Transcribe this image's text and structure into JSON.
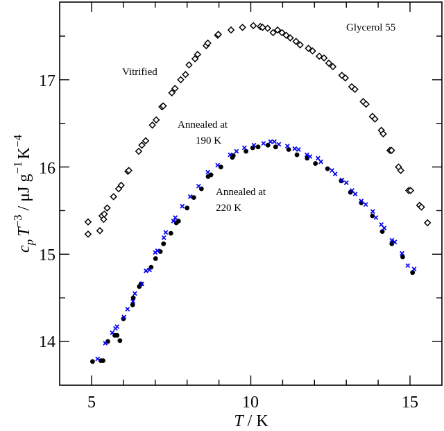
{
  "chart_data": {
    "type": "scatter",
    "title": "",
    "xlabel": {
      "var": "T",
      "unit": " / K"
    },
    "ylabel": {
      "c": "c",
      "sub": "p",
      "T": "T",
      "exp1": "−3",
      "unit": " / μJ g",
      "exp2": "−1",
      "K": "K",
      "exp3": "−4"
    },
    "xlim": [
      4.0,
      16.0
    ],
    "ylim": [
      13.5,
      17.9
    ],
    "x_ticks": [
      5,
      10,
      15
    ],
    "x_tick_labels": [
      "5",
      "10",
      "15"
    ],
    "x_minor_step": 1,
    "y_ticks": [
      14,
      15,
      16,
      17
    ],
    "y_tick_labels": [
      "14",
      "15",
      "16",
      "17"
    ],
    "y_minor_step": 0.5,
    "grid": false,
    "annotations": {
      "sample": "Glycerol 55",
      "vitrified": "Vitrified",
      "annealed190_line1": "Annealed at",
      "annealed190_line2": "190 K",
      "annealed220_line1": "Annealed at",
      "annealed220_line2": "220 K"
    },
    "series": [
      {
        "name": "Vitrified",
        "marker": "open-diamond",
        "color": "#000000",
        "points": [
          [
            4.89,
            15.37
          ],
          [
            4.89,
            15.23
          ],
          [
            5.26,
            15.27
          ],
          [
            5.33,
            15.44
          ],
          [
            5.38,
            15.4
          ],
          [
            5.4,
            15.46
          ],
          [
            5.49,
            15.53
          ],
          [
            5.69,
            15.66
          ],
          [
            5.85,
            15.75
          ],
          [
            5.93,
            15.79
          ],
          [
            6.14,
            15.95
          ],
          [
            6.17,
            15.96
          ],
          [
            6.48,
            16.18
          ],
          [
            6.58,
            16.25
          ],
          [
            6.7,
            16.3
          ],
          [
            6.91,
            16.48
          ],
          [
            7.03,
            16.54
          ],
          [
            7.21,
            16.69
          ],
          [
            7.25,
            16.7
          ],
          [
            7.52,
            16.85
          ],
          [
            7.62,
            16.9
          ],
          [
            7.8,
            17.0
          ],
          [
            7.95,
            17.06
          ],
          [
            8.06,
            17.17
          ],
          [
            8.25,
            17.24
          ],
          [
            8.33,
            17.29
          ],
          [
            8.6,
            17.39
          ],
          [
            8.65,
            17.42
          ],
          [
            8.96,
            17.51
          ],
          [
            8.98,
            17.52
          ],
          [
            9.38,
            17.57
          ],
          [
            9.74,
            17.6
          ],
          [
            10.08,
            17.62
          ],
          [
            10.3,
            17.61
          ],
          [
            10.37,
            17.6
          ],
          [
            10.53,
            17.59
          ],
          [
            10.7,
            17.54
          ],
          [
            10.84,
            17.57
          ],
          [
            10.98,
            17.54
          ],
          [
            11.11,
            17.51
          ],
          [
            11.24,
            17.48
          ],
          [
            11.42,
            17.44
          ],
          [
            11.55,
            17.4
          ],
          [
            11.81,
            17.36
          ],
          [
            11.94,
            17.33
          ],
          [
            12.15,
            17.27
          ],
          [
            12.3,
            17.25
          ],
          [
            12.45,
            17.19
          ],
          [
            12.58,
            17.15
          ],
          [
            12.86,
            17.05
          ],
          [
            12.97,
            17.02
          ],
          [
            13.17,
            16.92
          ],
          [
            13.27,
            16.89
          ],
          [
            13.53,
            16.75
          ],
          [
            13.62,
            16.72
          ],
          [
            13.82,
            16.58
          ],
          [
            13.9,
            16.55
          ],
          [
            14.1,
            16.42
          ],
          [
            14.16,
            16.38
          ],
          [
            14.37,
            16.19
          ],
          [
            14.42,
            16.19
          ],
          [
            14.64,
            16.0
          ],
          [
            14.71,
            15.96
          ],
          [
            14.96,
            15.73
          ],
          [
            15.02,
            15.73
          ],
          [
            15.3,
            15.56
          ],
          [
            15.36,
            15.54
          ],
          [
            15.55,
            15.36
          ]
        ]
      },
      {
        "name": "Annealed at 190 K",
        "marker": "cross",
        "color": "#0000ee",
        "points": [
          [
            5.19,
            13.8
          ],
          [
            5.43,
            13.98
          ],
          [
            5.65,
            14.1
          ],
          [
            5.75,
            14.15
          ],
          [
            5.8,
            14.17
          ],
          [
            6.02,
            14.28
          ],
          [
            6.13,
            14.37
          ],
          [
            6.3,
            14.46
          ],
          [
            6.36,
            14.55
          ],
          [
            6.58,
            14.66
          ],
          [
            6.71,
            14.81
          ],
          [
            6.82,
            14.82
          ],
          [
            7.0,
            15.02
          ],
          [
            7.07,
            15.04
          ],
          [
            7.27,
            15.19
          ],
          [
            7.33,
            15.25
          ],
          [
            7.57,
            15.38
          ],
          [
            7.63,
            15.42
          ],
          [
            7.85,
            15.55
          ],
          [
            8.1,
            15.66
          ],
          [
            8.36,
            15.78
          ],
          [
            8.65,
            15.94
          ],
          [
            8.96,
            16.02
          ],
          [
            9.35,
            16.14
          ],
          [
            9.55,
            16.18
          ],
          [
            9.8,
            16.22
          ],
          [
            10.1,
            16.25
          ],
          [
            10.4,
            16.27
          ],
          [
            10.62,
            16.29
          ],
          [
            10.74,
            16.29
          ],
          [
            10.88,
            16.26
          ],
          [
            11.15,
            16.24
          ],
          [
            11.38,
            16.21
          ],
          [
            11.5,
            16.2
          ],
          [
            11.76,
            16.14
          ],
          [
            11.86,
            16.12
          ],
          [
            12.11,
            16.1
          ],
          [
            12.2,
            16.06
          ],
          [
            12.55,
            15.96
          ],
          [
            12.65,
            15.92
          ],
          [
            12.86,
            15.85
          ],
          [
            13.0,
            15.82
          ],
          [
            13.18,
            15.73
          ],
          [
            13.28,
            15.69
          ],
          [
            13.47,
            15.61
          ],
          [
            13.61,
            15.57
          ],
          [
            13.83,
            15.49
          ],
          [
            13.93,
            15.42
          ],
          [
            14.1,
            15.34
          ],
          [
            14.19,
            15.3
          ],
          [
            14.43,
            15.16
          ],
          [
            14.52,
            15.14
          ],
          [
            14.75,
            15.01
          ],
          [
            14.93,
            14.87
          ],
          [
            15.13,
            14.83
          ]
        ]
      },
      {
        "name": "Annealed at 220 K",
        "marker": "filled-circle",
        "color": "#000000",
        "points": [
          [
            5.03,
            13.77
          ],
          [
            5.29,
            13.78
          ],
          [
            5.36,
            13.78
          ],
          [
            5.51,
            14.0
          ],
          [
            5.73,
            14.07
          ],
          [
            5.8,
            14.07
          ],
          [
            5.89,
            14.01
          ],
          [
            6.0,
            14.26
          ],
          [
            6.29,
            14.42
          ],
          [
            6.31,
            14.5
          ],
          [
            6.5,
            14.63
          ],
          [
            6.55,
            14.66
          ],
          [
            6.87,
            14.85
          ],
          [
            7.01,
            14.95
          ],
          [
            7.16,
            15.03
          ],
          [
            7.26,
            15.12
          ],
          [
            7.49,
            15.24
          ],
          [
            7.66,
            15.36
          ],
          [
            7.73,
            15.38
          ],
          [
            8.0,
            15.53
          ],
          [
            8.21,
            15.65
          ],
          [
            8.45,
            15.75
          ],
          [
            8.66,
            15.89
          ],
          [
            8.75,
            15.91
          ],
          [
            9.06,
            16.0
          ],
          [
            9.42,
            16.11
          ],
          [
            9.45,
            16.13
          ],
          [
            9.85,
            16.18
          ],
          [
            10.06,
            16.22
          ],
          [
            10.23,
            16.23
          ],
          [
            10.54,
            16.25
          ],
          [
            10.78,
            16.23
          ],
          [
            11.19,
            16.2
          ],
          [
            11.45,
            16.14
          ],
          [
            11.77,
            16.1
          ],
          [
            12.03,
            16.04
          ],
          [
            12.41,
            15.98
          ],
          [
            12.84,
            15.84
          ],
          [
            13.13,
            15.71
          ],
          [
            13.47,
            15.59
          ],
          [
            13.82,
            15.44
          ],
          [
            14.13,
            15.26
          ],
          [
            14.43,
            15.12
          ],
          [
            14.77,
            14.97
          ],
          [
            15.08,
            14.79
          ]
        ]
      }
    ]
  }
}
